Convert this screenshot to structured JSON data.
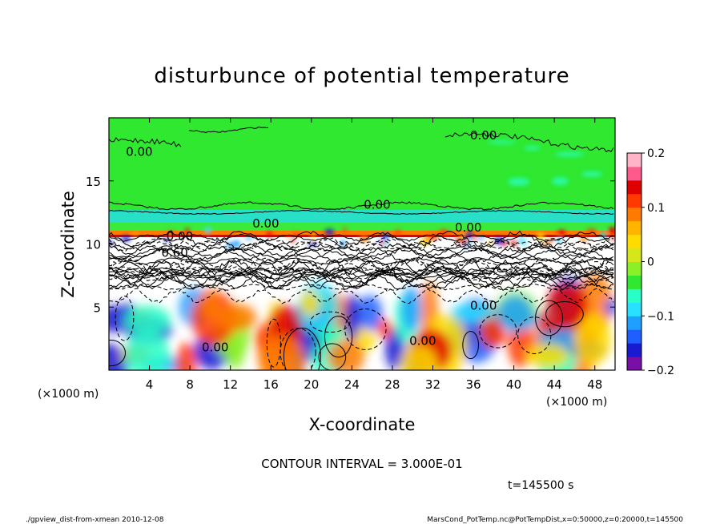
{
  "chart_data": {
    "type": "heatmap",
    "title": "disturbunce of potential temperature",
    "xlabel": "X-coordinate",
    "ylabel": "Z-coordinate",
    "x_unit": "(×1000 m)",
    "y_unit": "(×1000 m)",
    "xlim": [
      0,
      50
    ],
    "ylim": [
      0,
      20
    ],
    "x_ticks": [
      4,
      8,
      12,
      16,
      20,
      24,
      28,
      32,
      36,
      40,
      44,
      48
    ],
    "y_ticks": [
      5,
      10,
      15
    ],
    "colorbar": {
      "range": [
        -0.2,
        0.2
      ],
      "ticks": [
        0.2,
        0.1,
        0,
        -0.1,
        -0.2
      ],
      "tick_labels": [
        "0.2",
        "0.1",
        "0",
        "−0.1",
        "−0.2"
      ],
      "colors": [
        "#7a0fa8",
        "#1a1ad0",
        "#1f5fff",
        "#1fa0ff",
        "#28e0ff",
        "#28ffc8",
        "#2fe82f",
        "#8cf028",
        "#d7e61a",
        "#ffdc00",
        "#ffb400",
        "#ff7a00",
        "#ff3a00",
        "#e00000",
        "#ff5a8c",
        "#ffb4c8"
      ]
    },
    "contour_labels": [
      {
        "text": "0.00",
        "x": 3.0,
        "z": 17.0
      },
      {
        "text": "0.00",
        "x": 37.0,
        "z": 18.3
      },
      {
        "text": "0.00",
        "x": 26.5,
        "z": 12.8
      },
      {
        "text": "0.00",
        "x": 15.5,
        "z": 11.3
      },
      {
        "text": "0.00",
        "x": 35.5,
        "z": 11.0
      },
      {
        "text": "0.00",
        "x": 7.0,
        "z": 10.3
      },
      {
        "text": "0.60",
        "x": 6.5,
        "z": 9.0
      },
      {
        "text": "0.00",
        "x": 37.0,
        "z": 4.8
      },
      {
        "text": "0.00",
        "x": 31.0,
        "z": 2.0
      },
      {
        "text": "0.00",
        "x": 10.5,
        "z": 1.5
      }
    ],
    "contour_interval_text": "CONTOUR INTERVAL = 3.000E-01",
    "time_text": "t=145500 s"
  },
  "footer": {
    "left": "./gpview_dist-from-xmean  2010-12-08",
    "right": "MarsCond_PotTemp.nc@PotTempDist,x=0:50000,z=0:20000,t=145500"
  }
}
